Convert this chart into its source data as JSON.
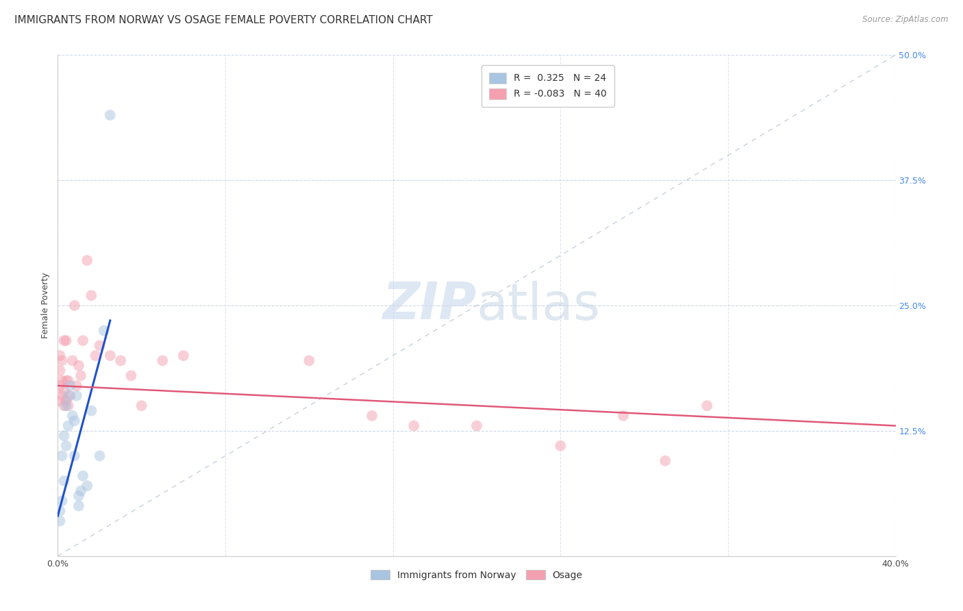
{
  "title": "IMMIGRANTS FROM NORWAY VS OSAGE FEMALE POVERTY CORRELATION CHART",
  "source": "Source: ZipAtlas.com",
  "ylabel": "Female Poverty",
  "x_min": 0.0,
  "x_max": 0.4,
  "y_min": 0.0,
  "y_max": 0.5,
  "x_ticks": [
    0.0,
    0.08,
    0.16,
    0.24,
    0.32,
    0.4
  ],
  "y_ticks": [
    0.0,
    0.125,
    0.25,
    0.375,
    0.5
  ],
  "legend_r1": "R =  0.325",
  "legend_n1": "N = 24",
  "legend_r2": "R = -0.083",
  "legend_n2": "N = 40",
  "norway_color": "#a8c4e0",
  "osage_color": "#f4a0b0",
  "norway_line_color": "#1e50cc",
  "osage_line_color": "#e05878",
  "diagonal_color": "#b0bece",
  "norway_x": [
    0.001,
    0.001,
    0.002,
    0.002,
    0.003,
    0.003,
    0.004,
    0.004,
    0.005,
    0.005,
    0.006,
    0.007,
    0.008,
    0.008,
    0.009,
    0.01,
    0.01,
    0.011,
    0.012,
    0.014,
    0.016,
    0.02,
    0.022,
    0.025
  ],
  "norway_y": [
    0.045,
    0.035,
    0.055,
    0.1,
    0.075,
    0.12,
    0.11,
    0.15,
    0.13,
    0.16,
    0.17,
    0.14,
    0.135,
    0.1,
    0.16,
    0.06,
    0.05,
    0.065,
    0.08,
    0.07,
    0.145,
    0.1,
    0.225,
    0.44
  ],
  "norway_line_x0": 0.0,
  "norway_line_y0": 0.04,
  "norway_line_x1": 0.025,
  "norway_line_y1": 0.235,
  "osage_x": [
    0.001,
    0.001,
    0.001,
    0.001,
    0.002,
    0.002,
    0.002,
    0.003,
    0.003,
    0.003,
    0.004,
    0.004,
    0.004,
    0.005,
    0.005,
    0.006,
    0.007,
    0.008,
    0.009,
    0.01,
    0.011,
    0.012,
    0.014,
    0.016,
    0.018,
    0.02,
    0.025,
    0.03,
    0.035,
    0.04,
    0.05,
    0.06,
    0.12,
    0.15,
    0.17,
    0.2,
    0.24,
    0.27,
    0.29,
    0.31
  ],
  "osage_y": [
    0.155,
    0.17,
    0.185,
    0.2,
    0.16,
    0.175,
    0.195,
    0.15,
    0.165,
    0.215,
    0.155,
    0.175,
    0.215,
    0.15,
    0.175,
    0.16,
    0.195,
    0.25,
    0.17,
    0.19,
    0.18,
    0.215,
    0.295,
    0.26,
    0.2,
    0.21,
    0.2,
    0.195,
    0.18,
    0.15,
    0.195,
    0.2,
    0.195,
    0.14,
    0.13,
    0.13,
    0.11,
    0.14,
    0.095,
    0.15
  ],
  "osage_line_x0": 0.0,
  "osage_line_y0": 0.17,
  "osage_line_x1": 0.4,
  "osage_line_y1": 0.13,
  "background_color": "#ffffff",
  "grid_color": "#c8d4e8",
  "title_fontsize": 11,
  "axis_label_fontsize": 9,
  "tick_fontsize": 9,
  "legend_fontsize": 10,
  "dot_size": 130,
  "dot_alpha": 0.5
}
